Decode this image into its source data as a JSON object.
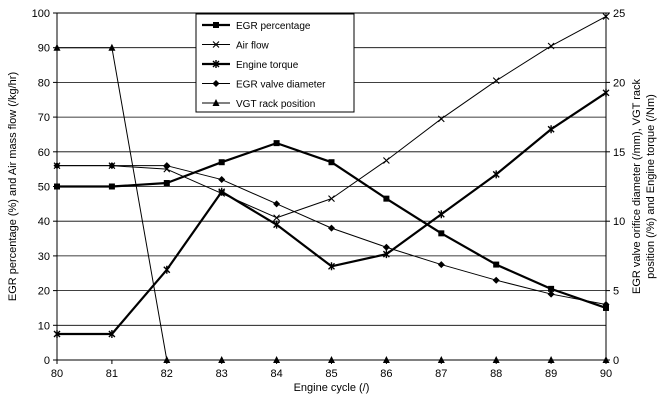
{
  "chart_data": {
    "type": "line",
    "xlabel": "Engine cycle (/)",
    "ylabel_left": "EGR percentage (%) and Air mass flow (/kg/hr)",
    "ylabel_right_line1": "EGR valve orifice diameter (/mm), VGT rack",
    "ylabel_right_line2": "position (/%) and Engine torque (/Nm)",
    "x": [
      80,
      81,
      82,
      83,
      84,
      85,
      86,
      87,
      88,
      89,
      90
    ],
    "x_ticks": [
      "80",
      "81",
      "82",
      "83",
      "84",
      "85",
      "86",
      "87",
      "88",
      "89",
      "90"
    ],
    "ylim_left": [
      0,
      100
    ],
    "yticks_left": [
      "0",
      "10",
      "20",
      "30",
      "40",
      "50",
      "60",
      "70",
      "80",
      "90",
      "100"
    ],
    "ylim_right": [
      0,
      25
    ],
    "yticks_right": [
      "0",
      "5",
      "10",
      "15",
      "20",
      "25"
    ],
    "grid": "horizontal",
    "legend_position": "top-center",
    "series": [
      {
        "name": "EGR percentage",
        "marker": "square",
        "width": 2.2,
        "values": [
          50,
          50,
          51,
          57,
          62.5,
          57,
          46.5,
          36.5,
          27.5,
          20.5,
          15
        ]
      },
      {
        "name": "Air flow",
        "marker": "x",
        "width": 1,
        "values": [
          56,
          56,
          55,
          48,
          41,
          46.5,
          57.5,
          69.5,
          80.5,
          90.5,
          99
        ]
      },
      {
        "name": "Engine torque",
        "marker": "star",
        "width": 2.2,
        "values": [
          7.5,
          7.5,
          26,
          48.5,
          39,
          27,
          30.5,
          42,
          53.5,
          66.5,
          77
        ]
      },
      {
        "name": "EGR valve diameter",
        "marker": "diamond",
        "width": 1,
        "values": [
          56,
          56,
          56,
          52,
          45,
          38,
          32.5,
          27.5,
          23,
          19,
          16
        ]
      },
      {
        "name": "VGT rack position",
        "marker": "triangle",
        "width": 1,
        "values": [
          90,
          90,
          0,
          0,
          0,
          0,
          0,
          0,
          0,
          0,
          0
        ]
      }
    ]
  }
}
